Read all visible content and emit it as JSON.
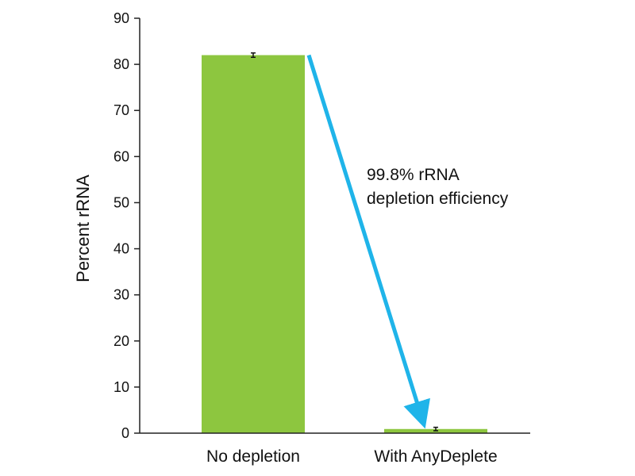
{
  "chart_data": {
    "type": "bar",
    "title": "",
    "xlabel": "",
    "ylabel": "Percent rRNA",
    "categories": [
      "No depletion",
      "With AnyDeplete"
    ],
    "values": [
      82.0,
      0.9
    ],
    "errors": [
      0.3,
      0.2
    ],
    "ylim": [
      0,
      90
    ],
    "yticks": [
      0,
      10,
      20,
      30,
      40,
      50,
      60,
      70,
      80,
      90
    ],
    "grid": false,
    "legend": "none",
    "annotation": {
      "lines": [
        "99.8% rRNA",
        "depletion efficiency"
      ],
      "arrow_from_category": 0,
      "arrow_to_category": 1
    },
    "colors": {
      "bar": "#8dc63f",
      "arrow": "#1fb4e9",
      "axis": "#222222",
      "error_bar": "#111111"
    }
  }
}
